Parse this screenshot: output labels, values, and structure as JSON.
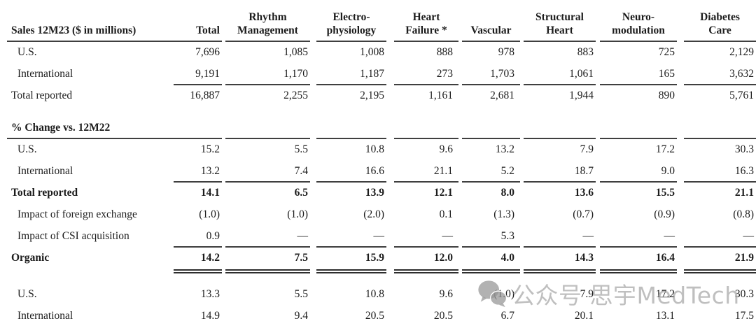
{
  "table": {
    "header": {
      "label": "Sales 12M23 ($ in millions)",
      "columns": [
        "Total",
        "Rhythm\nManagement",
        "Electro-\nphysiology",
        "Heart\nFailure *",
        "Vascular",
        "Structural\nHeart",
        "Neuro-\nmodulation",
        "Diabetes\nCare"
      ]
    },
    "rows": [
      {
        "label": "U.S.",
        "indent": true,
        "values": [
          "7,696",
          "1,085",
          "1,008",
          "888",
          "978",
          "883",
          "725",
          "2,129"
        ]
      },
      {
        "label": "International",
        "indent": true,
        "rule_below": "nums",
        "values": [
          "9,191",
          "1,170",
          "1,187",
          "273",
          "1,703",
          "1,061",
          "165",
          "3,632"
        ]
      },
      {
        "label": "Total reported",
        "values": [
          "16,887",
          "2,255",
          "2,195",
          "1,161",
          "2,681",
          "1,944",
          "890",
          "5,761"
        ]
      },
      {
        "spacer": true
      },
      {
        "label": "% Change vs. 12M22",
        "bold": true,
        "rule_below": "all",
        "values": [
          "",
          "",
          "",
          "",
          "",
          "",
          "",
          ""
        ]
      },
      {
        "label": "U.S.",
        "indent": true,
        "values": [
          "15.2",
          "5.5",
          "10.8",
          "9.6",
          "13.2",
          "7.9",
          "17.2",
          "30.3"
        ]
      },
      {
        "label": "International",
        "indent": true,
        "rule_below": "nums",
        "values": [
          "13.2",
          "7.4",
          "16.6",
          "21.1",
          "5.2",
          "18.7",
          "9.0",
          "16.3"
        ]
      },
      {
        "label": "Total reported",
        "bold": true,
        "values": [
          "14.1",
          "6.5",
          "13.9",
          "12.1",
          "8.0",
          "13.6",
          "15.5",
          "21.1"
        ]
      },
      {
        "label": "Impact of foreign exchange",
        "indent": true,
        "values": [
          "(1.0)",
          "(1.0)",
          "(2.0)",
          "0.1",
          "(1.3)",
          "(0.7)",
          "(0.9)",
          "(0.8)"
        ]
      },
      {
        "label": "Impact of CSI acquisition",
        "indent": true,
        "rule_below": "nums",
        "values": [
          "0.9",
          "—",
          "—",
          "—",
          "5.3",
          "—",
          "—",
          "—"
        ]
      },
      {
        "label": "Organic",
        "bold": true,
        "rule_below": "double",
        "values": [
          "14.2",
          "7.5",
          "15.9",
          "12.0",
          "4.0",
          "14.3",
          "16.4",
          "21.9"
        ]
      },
      {
        "spacer": true
      },
      {
        "label": "U.S.",
        "indent": true,
        "values": [
          "13.3",
          "5.5",
          "10.8",
          "9.6",
          "(1.0)",
          "7.9",
          "17.2",
          "30.3"
        ]
      },
      {
        "label": "International",
        "indent": true,
        "values": [
          "14.9",
          "9.4",
          "20.5",
          "20.5",
          "6.7",
          "20.1",
          "13.1",
          "17.5"
        ]
      }
    ]
  },
  "colors": {
    "text": "#1c1c1c",
    "rule": "#3f3f3f",
    "watermark": "#949494"
  },
  "watermark": {
    "icon": "wechat-icon",
    "text": "公众号 思宇MedTech"
  }
}
